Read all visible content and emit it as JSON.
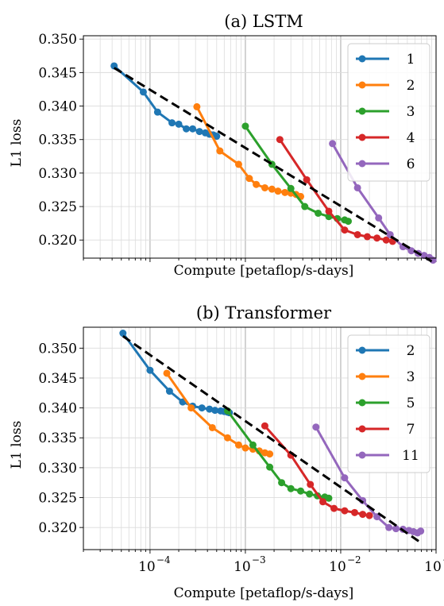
{
  "chart_data": [
    {
      "type": "line",
      "title": "(a) LSTM",
      "xlabel": "Compute [petaflop/s-days]",
      "ylabel": "L1 loss",
      "xscale": "log",
      "xlim": [
        2e-05,
        0.1
      ],
      "ylim": [
        0.3173,
        0.3505
      ],
      "yticks": [
        "0.320",
        "0.325",
        "0.330",
        "0.335",
        "0.340",
        "0.345",
        "0.350"
      ],
      "xticks": [],
      "grid": true,
      "legend": "top-right",
      "frontier": {
        "x": [
          4.2e-05,
          0.09
        ],
        "y": [
          0.3457,
          0.3168
        ],
        "color": "#000000"
      },
      "series": [
        {
          "name": "1",
          "color": "#1f77b4",
          "x": [
            4.2e-05,
            8.5e-05,
            0.00012,
            0.00017,
            0.0002,
            0.00024,
            0.00028,
            0.00033,
            0.00038,
            0.00042,
            0.00046,
            0.0005
          ],
          "y": [
            0.346,
            0.3421,
            0.3391,
            0.3375,
            0.3373,
            0.3366,
            0.3366,
            0.3362,
            0.336,
            0.3358,
            0.3357,
            0.3355
          ]
        },
        {
          "name": "2",
          "color": "#ff7f0e",
          "x": [
            0.00031,
            0.00054,
            0.00085,
            0.0011,
            0.0013,
            0.0016,
            0.0019,
            0.0022,
            0.0026,
            0.003,
            0.0034,
            0.0038
          ],
          "y": [
            0.3399,
            0.3333,
            0.3313,
            0.3292,
            0.3283,
            0.3278,
            0.3276,
            0.3273,
            0.3271,
            0.327,
            0.3268,
            0.3265
          ]
        },
        {
          "name": "3",
          "color": "#2ca02c",
          "x": [
            0.001,
            0.0019,
            0.003,
            0.0042,
            0.0058,
            0.0075,
            0.0092,
            0.011,
            0.012
          ],
          "y": [
            0.337,
            0.3313,
            0.3277,
            0.325,
            0.324,
            0.3235,
            0.3232,
            0.323,
            0.3228
          ]
        },
        {
          "name": "4",
          "color": "#d62728",
          "x": [
            0.0023,
            0.0044,
            0.0075,
            0.011,
            0.015,
            0.019,
            0.024,
            0.03,
            0.035
          ],
          "y": [
            0.335,
            0.329,
            0.3243,
            0.3215,
            0.3208,
            0.3205,
            0.3203,
            0.32,
            0.3198
          ]
        },
        {
          "name": "6",
          "color": "#9467bd",
          "x": [
            0.0082,
            0.015,
            0.025,
            0.033,
            0.045,
            0.055,
            0.065,
            0.075,
            0.085,
            0.093
          ],
          "y": [
            0.3344,
            0.3278,
            0.3233,
            0.3208,
            0.319,
            0.3184,
            0.318,
            0.3177,
            0.3174,
            0.317
          ]
        }
      ]
    },
    {
      "type": "line",
      "title": "(b) Transformer",
      "xlabel": "Compute [petaflop/s-days]",
      "ylabel": "L1 loss",
      "xscale": "log",
      "xlim": [
        2e-05,
        0.1
      ],
      "ylim": [
        0.3163,
        0.3535
      ],
      "yticks": [
        "0.320",
        "0.325",
        "0.330",
        "0.335",
        "0.340",
        "0.345",
        "0.350"
      ],
      "xticks": [
        {
          "base": "10",
          "exp": "−4",
          "value": 0.0001
        },
        {
          "base": "10",
          "exp": "−3",
          "value": 0.001
        },
        {
          "base": "10",
          "exp": "−2",
          "value": 0.01
        },
        {
          "base": "10",
          "exp": "−1",
          "value": 0.1
        }
      ],
      "grid": true,
      "legend": "top-right",
      "frontier": {
        "x": [
          5.2e-05,
          0.07
        ],
        "y": [
          0.352,
          0.3174
        ],
        "color": "#000000"
      },
      "series": [
        {
          "name": "2",
          "color": "#1f77b4",
          "x": [
            5.2e-05,
            0.0001,
            0.00016,
            0.00022,
            0.00028,
            0.00035,
            0.00042,
            0.00048,
            0.00055,
            0.0006,
            0.00065,
            0.00068
          ],
          "y": [
            0.3525,
            0.3463,
            0.3428,
            0.341,
            0.3403,
            0.34,
            0.3398,
            0.3396,
            0.3395,
            0.3394,
            0.3393,
            0.3392
          ]
        },
        {
          "name": "3",
          "color": "#ff7f0e",
          "x": [
            0.00015,
            0.00027,
            0.00045,
            0.00065,
            0.00085,
            0.001,
            0.0012,
            0.0014,
            0.0016,
            0.0018
          ],
          "y": [
            0.3458,
            0.34,
            0.3367,
            0.335,
            0.3338,
            0.3333,
            0.3331,
            0.3328,
            0.3325,
            0.3323
          ]
        },
        {
          "name": "5",
          "color": "#2ca02c",
          "x": [
            0.00065,
            0.0012,
            0.0018,
            0.0024,
            0.003,
            0.0038,
            0.0047,
            0.0057,
            0.0068,
            0.0075
          ],
          "y": [
            0.3395,
            0.3338,
            0.3301,
            0.3275,
            0.3265,
            0.3261,
            0.3256,
            0.3253,
            0.3251,
            0.3249
          ]
        },
        {
          "name": "7",
          "color": "#d62728",
          "x": [
            0.0016,
            0.003,
            0.0048,
            0.0065,
            0.0085,
            0.011,
            0.014,
            0.017,
            0.02
          ],
          "y": [
            0.337,
            0.3321,
            0.3272,
            0.3243,
            0.3232,
            0.3228,
            0.3225,
            0.3222,
            0.322
          ]
        },
        {
          "name": "11",
          "color": "#9467bd",
          "x": [
            0.0055,
            0.011,
            0.017,
            0.024,
            0.032,
            0.038,
            0.045,
            0.052,
            0.058,
            0.064,
            0.069
          ],
          "y": [
            0.3368,
            0.3283,
            0.3245,
            0.3218,
            0.32,
            0.3198,
            0.3197,
            0.3195,
            0.3193,
            0.3191,
            0.3194
          ]
        }
      ]
    }
  ]
}
